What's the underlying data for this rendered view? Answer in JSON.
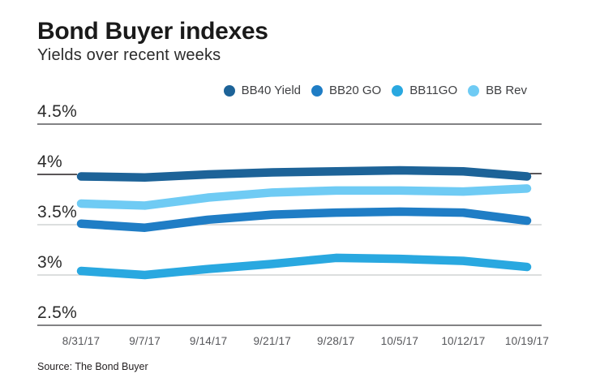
{
  "header": {
    "title": "Bond Buyer indexes",
    "subtitle": "Yields over recent weeks"
  },
  "source_note": "Source: The Bond Buyer",
  "chart_data": {
    "type": "line",
    "title": "Bond Buyer indexes",
    "subtitle": "Yields over recent weeks",
    "categories": [
      "8/31/17",
      "9/7/17",
      "9/14/17",
      "9/21/17",
      "9/28/17",
      "10/5/17",
      "10/12/17",
      "10/19/17"
    ],
    "series": [
      {
        "name": "BB40 Yield",
        "color": "#1d6398",
        "values": [
          3.98,
          3.97,
          4.0,
          4.02,
          4.03,
          4.04,
          4.03,
          3.98
        ]
      },
      {
        "name": "BB20 GO",
        "color": "#1f7dc5",
        "values": [
          3.51,
          3.47,
          3.55,
          3.6,
          3.62,
          3.63,
          3.62,
          3.54
        ]
      },
      {
        "name": "BB11GO",
        "color": "#29a8e0",
        "values": [
          3.04,
          3.0,
          3.06,
          3.11,
          3.17,
          3.16,
          3.14,
          3.08
        ]
      },
      {
        "name": "BB Rev",
        "color": "#6fcbf4",
        "values": [
          3.71,
          3.69,
          3.77,
          3.82,
          3.84,
          3.84,
          3.83,
          3.86
        ]
      }
    ],
    "yticks": [
      {
        "label": "4.5%",
        "value": 4.5
      },
      {
        "label": "4%",
        "value": 4.0
      },
      {
        "label": "3.5%",
        "value": 3.5
      },
      {
        "label": "3%",
        "value": 3.0
      },
      {
        "label": "2.5%",
        "value": 2.5
      }
    ],
    "ylim": [
      2.5,
      4.5
    ],
    "unit": "%",
    "grid": "horizontal",
    "legend_position": "top",
    "grid_colors": {
      "frame": "#58595b",
      "inner": "#c8c9cb",
      "tick": "#231f20"
    }
  }
}
